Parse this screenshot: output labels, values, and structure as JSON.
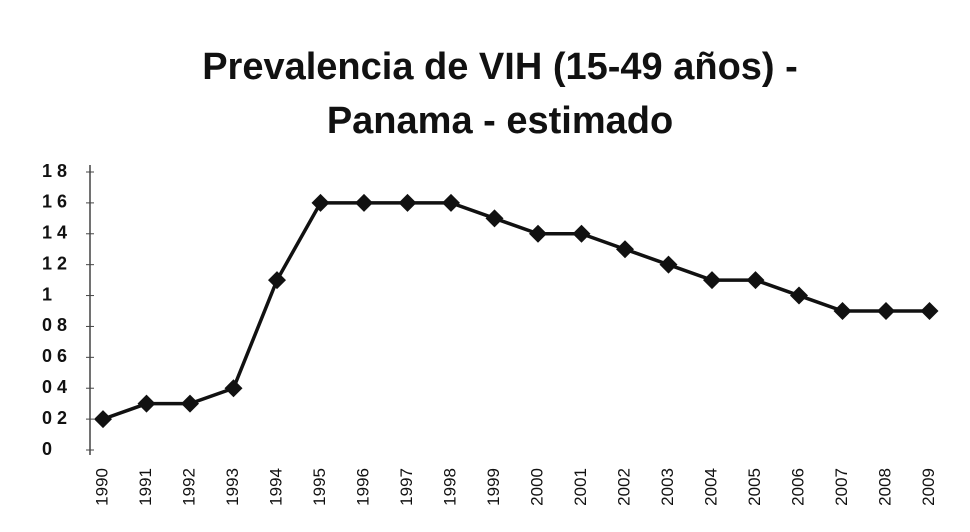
{
  "chart_data": {
    "type": "line",
    "title": "Prevalencia de VIH (15-49 años) - Panama - estimado",
    "categories": [
      "1990",
      "1991",
      "1992",
      "1993",
      "1994",
      "1995",
      "1996",
      "1997",
      "1998",
      "1999",
      "2000",
      "2001",
      "2002",
      "2003",
      "2004",
      "2005",
      "2006",
      "2007",
      "2008",
      "2009"
    ],
    "values": [
      0.2,
      0.3,
      0.3,
      0.4,
      1.1,
      1.6,
      1.6,
      1.6,
      1.6,
      1.5,
      1.4,
      1.4,
      1.3,
      1.2,
      1.1,
      1.1,
      1.0,
      0.9,
      0.9,
      0.9
    ],
    "color": "#111111",
    "ylim": [
      0,
      1.8
    ],
    "yticks": [
      0,
      {
        "value": 0.2,
        "label": "0 2"
      },
      {
        "value": 0.4,
        "label": "0 4"
      },
      {
        "value": 0.6,
        "label": "0 6"
      },
      {
        "value": 0.8,
        "label": "0 8"
      },
      1,
      {
        "value": 1.2,
        "label": "1 2"
      },
      {
        "value": 1.4,
        "label": "1 4"
      },
      {
        "value": 1.6,
        "label": "1 6"
      },
      {
        "value": 1.8,
        "label": "1 8"
      }
    ],
    "grid": false
  }
}
